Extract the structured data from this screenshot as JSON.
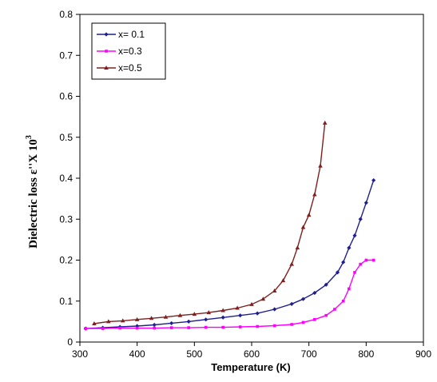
{
  "chart_data": {
    "type": "line",
    "xlabel": "Temperature (K)",
    "ylabel": "Dielectric loss ε''X 10",
    "ylabel_exponent": "3",
    "xlim": [
      300,
      900
    ],
    "ylim": [
      0,
      0.8
    ],
    "x_ticks": [
      "300",
      "400",
      "500",
      "600",
      "700",
      "800",
      "900"
    ],
    "y_ticks": [
      "0",
      "0.1",
      "0.2",
      "0.3",
      "0.4",
      "0.5",
      "0.6",
      "0.7",
      "0.8"
    ],
    "grid": false,
    "legend_position": "top-left",
    "series": [
      {
        "name": "x= 0.1",
        "color": "#1f1f8f",
        "marker": "diamond",
        "x": [
          310,
          340,
          370,
          400,
          430,
          460,
          490,
          520,
          550,
          580,
          610,
          640,
          670,
          690,
          710,
          730,
          750,
          760,
          770,
          780,
          790,
          800,
          813
        ],
        "y": [
          0.033,
          0.035,
          0.037,
          0.039,
          0.042,
          0.046,
          0.05,
          0.055,
          0.06,
          0.065,
          0.07,
          0.08,
          0.093,
          0.105,
          0.12,
          0.14,
          0.17,
          0.195,
          0.23,
          0.26,
          0.3,
          0.34,
          0.395
        ]
      },
      {
        "name": "x=0.3",
        "color": "#ff00ff",
        "marker": "square",
        "x": [
          310,
          340,
          370,
          400,
          430,
          460,
          490,
          520,
          550,
          580,
          610,
          640,
          670,
          690,
          710,
          730,
          745,
          760,
          770,
          780,
          790,
          800,
          813
        ],
        "y": [
          0.033,
          0.033,
          0.034,
          0.034,
          0.034,
          0.035,
          0.035,
          0.036,
          0.036,
          0.037,
          0.038,
          0.04,
          0.043,
          0.048,
          0.055,
          0.065,
          0.08,
          0.1,
          0.13,
          0.17,
          0.19,
          0.2,
          0.2
        ]
      },
      {
        "name": "x=0.5",
        "color": "#7f1f1f",
        "marker": "triangle",
        "x": [
          325,
          350,
          375,
          400,
          425,
          450,
          475,
          500,
          525,
          550,
          575,
          600,
          620,
          640,
          655,
          670,
          680,
          690,
          700,
          710,
          720,
          728
        ],
        "y": [
          0.045,
          0.05,
          0.052,
          0.055,
          0.058,
          0.061,
          0.065,
          0.068,
          0.072,
          0.077,
          0.083,
          0.092,
          0.105,
          0.125,
          0.15,
          0.19,
          0.23,
          0.28,
          0.31,
          0.36,
          0.43,
          0.535
        ]
      }
    ]
  }
}
